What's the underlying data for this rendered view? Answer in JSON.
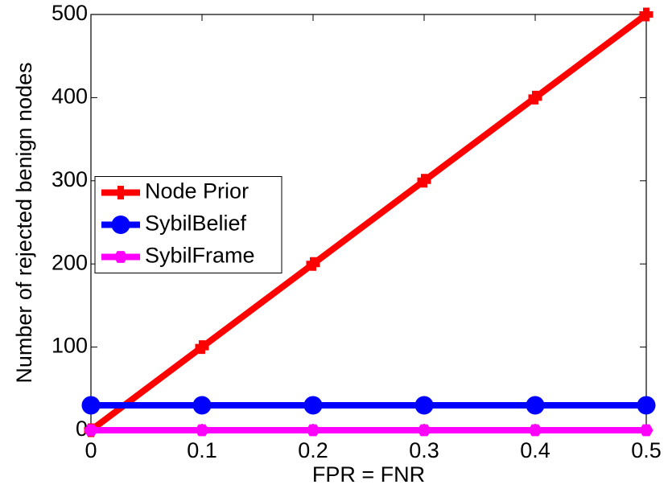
{
  "chart_data": {
    "type": "line",
    "xlabel": "FPR = FNR",
    "ylabel": "Number of rejected benign nodes",
    "x": [
      0,
      0.1,
      0.2,
      0.3,
      0.4,
      0.5
    ],
    "series": [
      {
        "name": "Node Prior",
        "color": "#ff0000",
        "marker": "plus",
        "values": [
          0,
          100,
          200,
          300,
          400,
          500
        ]
      },
      {
        "name": "SybilBelief",
        "color": "#0000ff",
        "marker": "circle",
        "values": [
          30,
          30,
          30,
          30,
          30,
          30
        ]
      },
      {
        "name": "SybilFrame",
        "color": "#ff00ff",
        "marker": "hexagon",
        "values": [
          0,
          0,
          0,
          0,
          0,
          0
        ]
      }
    ],
    "xlim": [
      0,
      0.5
    ],
    "xticks": [
      0,
      0.1,
      0.2,
      0.3,
      0.4,
      0.5
    ],
    "ylim": [
      0,
      500
    ],
    "yticks": [
      0,
      100,
      200,
      300,
      400,
      500
    ],
    "legend": "center left"
  }
}
